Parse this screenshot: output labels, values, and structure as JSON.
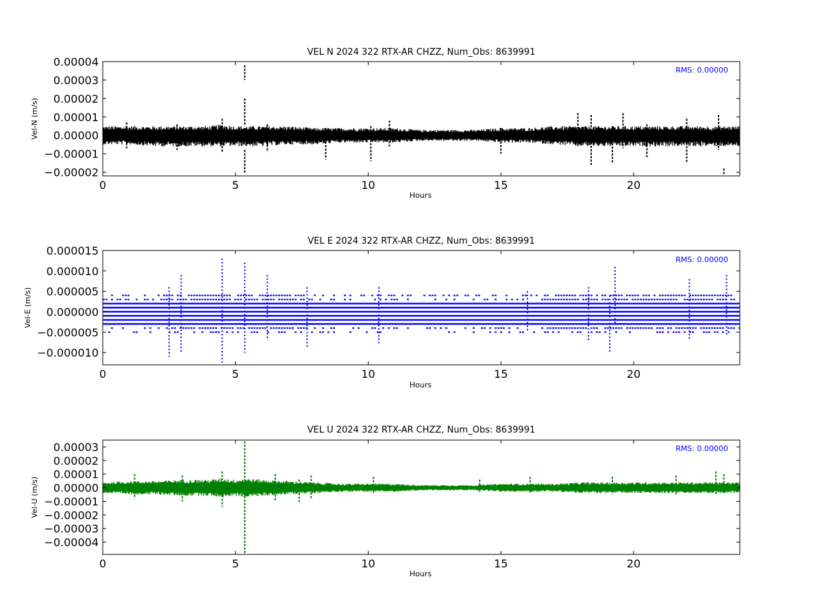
{
  "chart_data": [
    {
      "type": "scatter",
      "title": "VEL N 2024 322 RTX-AR  CHZZ, Num_Obs: 8639991",
      "xlabel": "Hours",
      "ylabel": "Vel-N (m/s)",
      "xlim": [
        0,
        24
      ],
      "ylim": [
        -2.2e-05,
        4e-05
      ],
      "xticks": [
        0,
        5,
        10,
        15,
        20
      ],
      "xtick_labels": [
        "0",
        "5",
        "10",
        "15",
        "20"
      ],
      "yticks": [
        -2e-05,
        -1e-05,
        0.0,
        1e-05,
        2e-05,
        3e-05,
        4e-05
      ],
      "ytick_labels": [
        "−0.00002",
        "−0.00001",
        "0.00000",
        "0.00001",
        "0.00002",
        "0.00003",
        "0.00004"
      ],
      "rms_label": "RMS:  0.00000",
      "color": "#000000",
      "grid": false,
      "series": [
        {
          "envelope": {
            "x": [
              0,
              1,
              2,
              3,
              4,
              4.5,
              5,
              5.35,
              6,
              7,
              8,
              9,
              10,
              11,
              12,
              13,
              14,
              15,
              16,
              17,
              18,
              18.5,
              19,
              20,
              21,
              22,
              23,
              24
            ],
            "upper": [
              5e-06,
              5e-06,
              5e-06,
              5e-06,
              5e-06,
              6e-06,
              5e-06,
              5e-06,
              5e-06,
              5e-06,
              4e-06,
              4e-06,
              4e-06,
              4e-06,
              3e-06,
              3e-06,
              3e-06,
              4e-06,
              4e-06,
              5e-06,
              5e-06,
              5e-06,
              5e-06,
              5e-06,
              5e-06,
              5e-06,
              5e-06,
              5e-06
            ],
            "lower": [
              -5e-06,
              -5e-06,
              -6e-06,
              -6e-06,
              -6e-06,
              -6e-06,
              -6e-06,
              -6e-06,
              -6e-06,
              -5e-06,
              -5e-06,
              -4e-06,
              -4e-06,
              -4e-06,
              -3e-06,
              -3e-06,
              -3e-06,
              -4e-06,
              -4e-06,
              -5e-06,
              -6e-06,
              -6e-06,
              -6e-06,
              -6e-06,
              -6e-06,
              -6e-06,
              -6e-06,
              -6e-06
            ]
          },
          "spikes": [
            {
              "x": 5.35,
              "y": [
                3e-05,
                3.8e-05
              ]
            },
            {
              "x": 5.35,
              "y": [
                -2.1e-05,
                -8e-06
              ]
            },
            {
              "x": 5.35,
              "y": [
                5e-06,
                2e-05
              ]
            },
            {
              "x": 0.9,
              "y": [
                -7e-06,
                7e-06
              ]
            },
            {
              "x": 2.8,
              "y": [
                -8e-06,
                6e-06
              ]
            },
            {
              "x": 4.5,
              "y": [
                -9e-06,
                9e-06
              ]
            },
            {
              "x": 6.2,
              "y": [
                -9e-06,
                6e-06
              ]
            },
            {
              "x": 8.4,
              "y": [
                -1.3e-05,
                4e-06
              ]
            },
            {
              "x": 10.1,
              "y": [
                -1.4e-05,
                5e-06
              ]
            },
            {
              "x": 10.8,
              "y": [
                -6e-06,
                8e-06
              ]
            },
            {
              "x": 15.0,
              "y": [
                -1e-05,
                4e-06
              ]
            },
            {
              "x": 17.9,
              "y": [
                -6e-06,
                1.2e-05
              ]
            },
            {
              "x": 18.4,
              "y": [
                -1.6e-05,
                1.1e-05
              ]
            },
            {
              "x": 19.2,
              "y": [
                -1.5e-05,
                5e-06
              ]
            },
            {
              "x": 19.6,
              "y": [
                -7e-06,
                1.2e-05
              ]
            },
            {
              "x": 20.5,
              "y": [
                -1.2e-05,
                6e-06
              ]
            },
            {
              "x": 22.0,
              "y": [
                -1.5e-05,
                9e-06
              ]
            },
            {
              "x": 23.2,
              "y": [
                -8e-06,
                1.1e-05
              ]
            },
            {
              "x": 23.4,
              "y": [
                -2.1e-05,
                -1.8e-05
              ]
            }
          ]
        }
      ]
    },
    {
      "type": "scatter",
      "title": "VEL E 2024 322 RTX-AR  CHZZ, Num_Obs: 8639991",
      "xlabel": "Hours",
      "ylabel": "Vel-E (m/s)",
      "xlim": [
        0,
        24
      ],
      "ylim": [
        -1.3e-05,
        1.5e-05
      ],
      "xticks": [
        0,
        5,
        10,
        15,
        20
      ],
      "xtick_labels": [
        "0",
        "5",
        "10",
        "15",
        "20"
      ],
      "yticks": [
        -1e-05,
        -5e-06,
        0.0,
        5e-06,
        1e-05,
        1.5e-05
      ],
      "ytick_labels": [
        "−0.000010",
        "−0.000005",
        "0.000000",
        "0.000005",
        "0.000010",
        "0.000015"
      ],
      "rms_label": "RMS:  0.00000",
      "color": "#0000ff",
      "grid": false,
      "series": [
        {
          "levels": [
            -3e-06,
            -2e-06,
            -1e-06,
            0.0,
            1e-06,
            2e-06
          ],
          "sparse_levels": [
            -5e-06,
            -4e-06,
            3e-06,
            4e-06
          ],
          "spikes": [
            {
              "x": 2.5,
              "y": [
                -1.1e-05,
                6e-06
              ]
            },
            {
              "x": 2.95,
              "y": [
                -1e-05,
                9e-06
              ]
            },
            {
              "x": 4.5,
              "y": [
                -1.3e-05,
                1.3e-05
              ]
            },
            {
              "x": 5.35,
              "y": [
                -1e-05,
                1.2e-05
              ]
            },
            {
              "x": 6.2,
              "y": [
                -7e-06,
                9e-06
              ]
            },
            {
              "x": 7.7,
              "y": [
                -9e-06,
                6e-06
              ]
            },
            {
              "x": 10.4,
              "y": [
                -8e-06,
                6e-06
              ]
            },
            {
              "x": 16.0,
              "y": [
                -5e-06,
                5e-06
              ]
            },
            {
              "x": 18.3,
              "y": [
                -7e-06,
                6e-06
              ]
            },
            {
              "x": 19.1,
              "y": [
                -1e-05,
                4e-06
              ]
            },
            {
              "x": 19.3,
              "y": [
                -3e-06,
                1.1e-05
              ]
            },
            {
              "x": 22.1,
              "y": [
                -7e-06,
                8e-06
              ]
            },
            {
              "x": 23.5,
              "y": [
                -6e-06,
                9e-06
              ]
            }
          ]
        }
      ]
    },
    {
      "type": "scatter",
      "title": "VEL U 2024 322 RTX-AR  CHZZ, Num_Obs: 8639991",
      "xlabel": "Hours",
      "ylabel": "Vel-U (m/s)",
      "xlim": [
        0,
        24
      ],
      "ylim": [
        -4.9e-05,
        3.5e-05
      ],
      "xticks": [
        0,
        5,
        10,
        15,
        20
      ],
      "xtick_labels": [
        "0",
        "5",
        "10",
        "15",
        "20"
      ],
      "yticks": [
        -4e-05,
        -3e-05,
        -2e-05,
        -1e-05,
        0.0,
        1e-05,
        2e-05,
        3e-05
      ],
      "ytick_labels": [
        "−0.00004",
        "−0.00003",
        "−0.00002",
        "−0.00001",
        "0.00000",
        "0.00001",
        "0.00002",
        "0.00003"
      ],
      "rms_label": "RMS:  0.00000",
      "color": "#008000",
      "grid": false,
      "series": [
        {
          "envelope": {
            "x": [
              0,
              1,
              2,
              3,
              4,
              4.5,
              5,
              5.35,
              6,
              7,
              8,
              9,
              10,
              11,
              12,
              13,
              14,
              15,
              16,
              17,
              18,
              19,
              20,
              21,
              22,
              23,
              24
            ],
            "upper": [
              4e-06,
              5e-06,
              5e-06,
              6e-06,
              6e-06,
              7e-06,
              6e-06,
              7e-06,
              6e-06,
              5e-06,
              4e-06,
              3e-06,
              3e-06,
              3e-06,
              2e-06,
              2e-06,
              2e-06,
              3e-06,
              3e-06,
              3e-06,
              4e-06,
              4e-06,
              4e-06,
              4e-06,
              4e-06,
              4e-06,
              4e-06
            ],
            "lower": [
              -4e-06,
              -5e-06,
              -5e-06,
              -6e-06,
              -6e-06,
              -7e-06,
              -6e-06,
              -7e-06,
              -6e-06,
              -5e-06,
              -4e-06,
              -3e-06,
              -3e-06,
              -3e-06,
              -2e-06,
              -2e-06,
              -2e-06,
              -3e-06,
              -3e-06,
              -3e-06,
              -4e-06,
              -4e-06,
              -4e-06,
              -4e-06,
              -4e-06,
              -4e-06,
              -4e-06
            ]
          },
          "spikes": [
            {
              "x": 5.35,
              "y": [
                -4.8e-05,
                3.4e-05
              ]
            },
            {
              "x": 4.5,
              "y": [
                -1.4e-05,
                1.2e-05
              ]
            },
            {
              "x": 1.2,
              "y": [
                -8e-06,
                1e-05
              ]
            },
            {
              "x": 3.0,
              "y": [
                -1e-05,
                9e-06
              ]
            },
            {
              "x": 6.5,
              "y": [
                -1e-05,
                1e-05
              ]
            },
            {
              "x": 7.4,
              "y": [
                -1.1e-05,
                6e-06
              ]
            },
            {
              "x": 7.85,
              "y": [
                -8e-06,
                9e-06
              ]
            },
            {
              "x": 10.2,
              "y": [
                -4e-06,
                8e-06
              ]
            },
            {
              "x": 14.2,
              "y": [
                -4e-06,
                6e-06
              ]
            },
            {
              "x": 16.1,
              "y": [
                -4e-06,
                8e-06
              ]
            },
            {
              "x": 19.2,
              "y": [
                -5e-06,
                8e-06
              ]
            },
            {
              "x": 21.6,
              "y": [
                -5e-06,
                9e-06
              ]
            },
            {
              "x": 23.1,
              "y": [
                -5e-06,
                1.2e-05
              ]
            },
            {
              "x": 23.4,
              "y": [
                -4e-06,
                1e-05
              ]
            }
          ]
        }
      ]
    }
  ]
}
